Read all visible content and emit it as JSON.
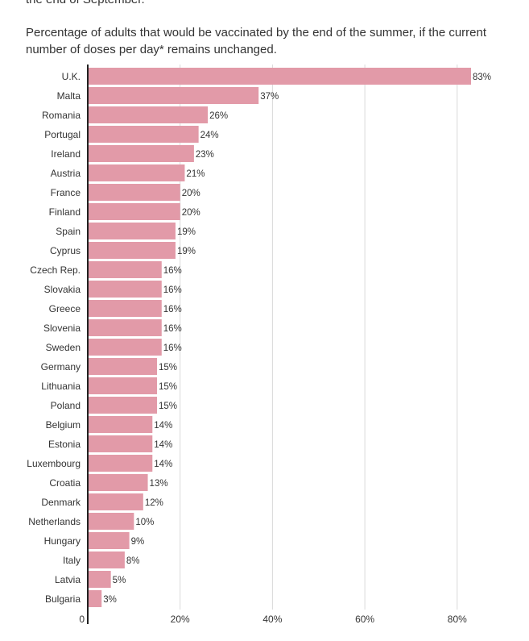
{
  "header": {
    "cut_text": "the end of September.",
    "subtitle": "Percentage of adults that would be vaccinated by the end of the summer, if the current number of doses per day* remains unchanged."
  },
  "colors": {
    "bar": "#e29aa8",
    "axis": "#222222",
    "grid": "#d9d9d9",
    "text": "#333333"
  },
  "chart_data": {
    "type": "bar",
    "orientation": "horizontal",
    "categories": [
      "U.K.",
      "Malta",
      "Romania",
      "Portugal",
      "Ireland",
      "Austria",
      "France",
      "Finland",
      "Spain",
      "Cyprus",
      "Czech Rep.",
      "Slovakia",
      "Greece",
      "Slovenia",
      "Sweden",
      "Germany",
      "Lithuania",
      "Poland",
      "Belgium",
      "Estonia",
      "Luxembourg",
      "Croatia",
      "Denmark",
      "Netherlands",
      "Hungary",
      "Italy",
      "Latvia",
      "Bulgaria"
    ],
    "values": [
      83,
      37,
      26,
      24,
      23,
      21,
      20,
      20,
      19,
      19,
      16,
      16,
      16,
      16,
      16,
      15,
      15,
      15,
      14,
      14,
      14,
      13,
      12,
      10,
      9,
      8,
      5,
      3
    ],
    "value_labels": [
      "83%",
      "37%",
      "26%",
      "24%",
      "23%",
      "21%",
      "20%",
      "20%",
      "19%",
      "19%",
      "16%",
      "16%",
      "16%",
      "16%",
      "16%",
      "15%",
      "15%",
      "15%",
      "14%",
      "14%",
      "14%",
      "13%",
      "12%",
      "10%",
      "9%",
      "8%",
      "5%",
      "3%"
    ],
    "xlim": [
      0,
      86
    ],
    "x_ticks": [
      0,
      20,
      40,
      60,
      80
    ],
    "x_tick_labels": [
      "0",
      "20%",
      "40%",
      "60%",
      "80%"
    ],
    "grid": true
  }
}
